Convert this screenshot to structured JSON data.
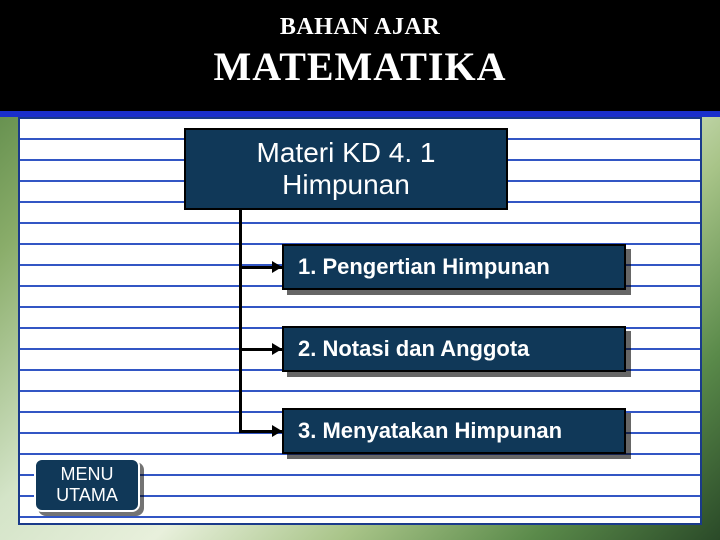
{
  "header": {
    "subtitle": "BAHAN AJAR",
    "title": "MATEMATIKA"
  },
  "topic": {
    "line1": "Materi KD 4. 1",
    "line2": "Himpunan"
  },
  "items": [
    {
      "label": "1. Pengertian Himpunan"
    },
    {
      "label": "2. Notasi dan Anggota"
    },
    {
      "label": "3. Menyatakan Himpunan"
    }
  ],
  "menu": {
    "line1": "MENU",
    "line2": "UTAMA"
  },
  "colors": {
    "box_bg": "#103858",
    "header_bg": "#000000",
    "header_border": "#1a2fcc",
    "paper_line": "#3256c4",
    "paper_border": "#1a3a8a",
    "shadow": "rgba(0,0,0,0.6)"
  }
}
